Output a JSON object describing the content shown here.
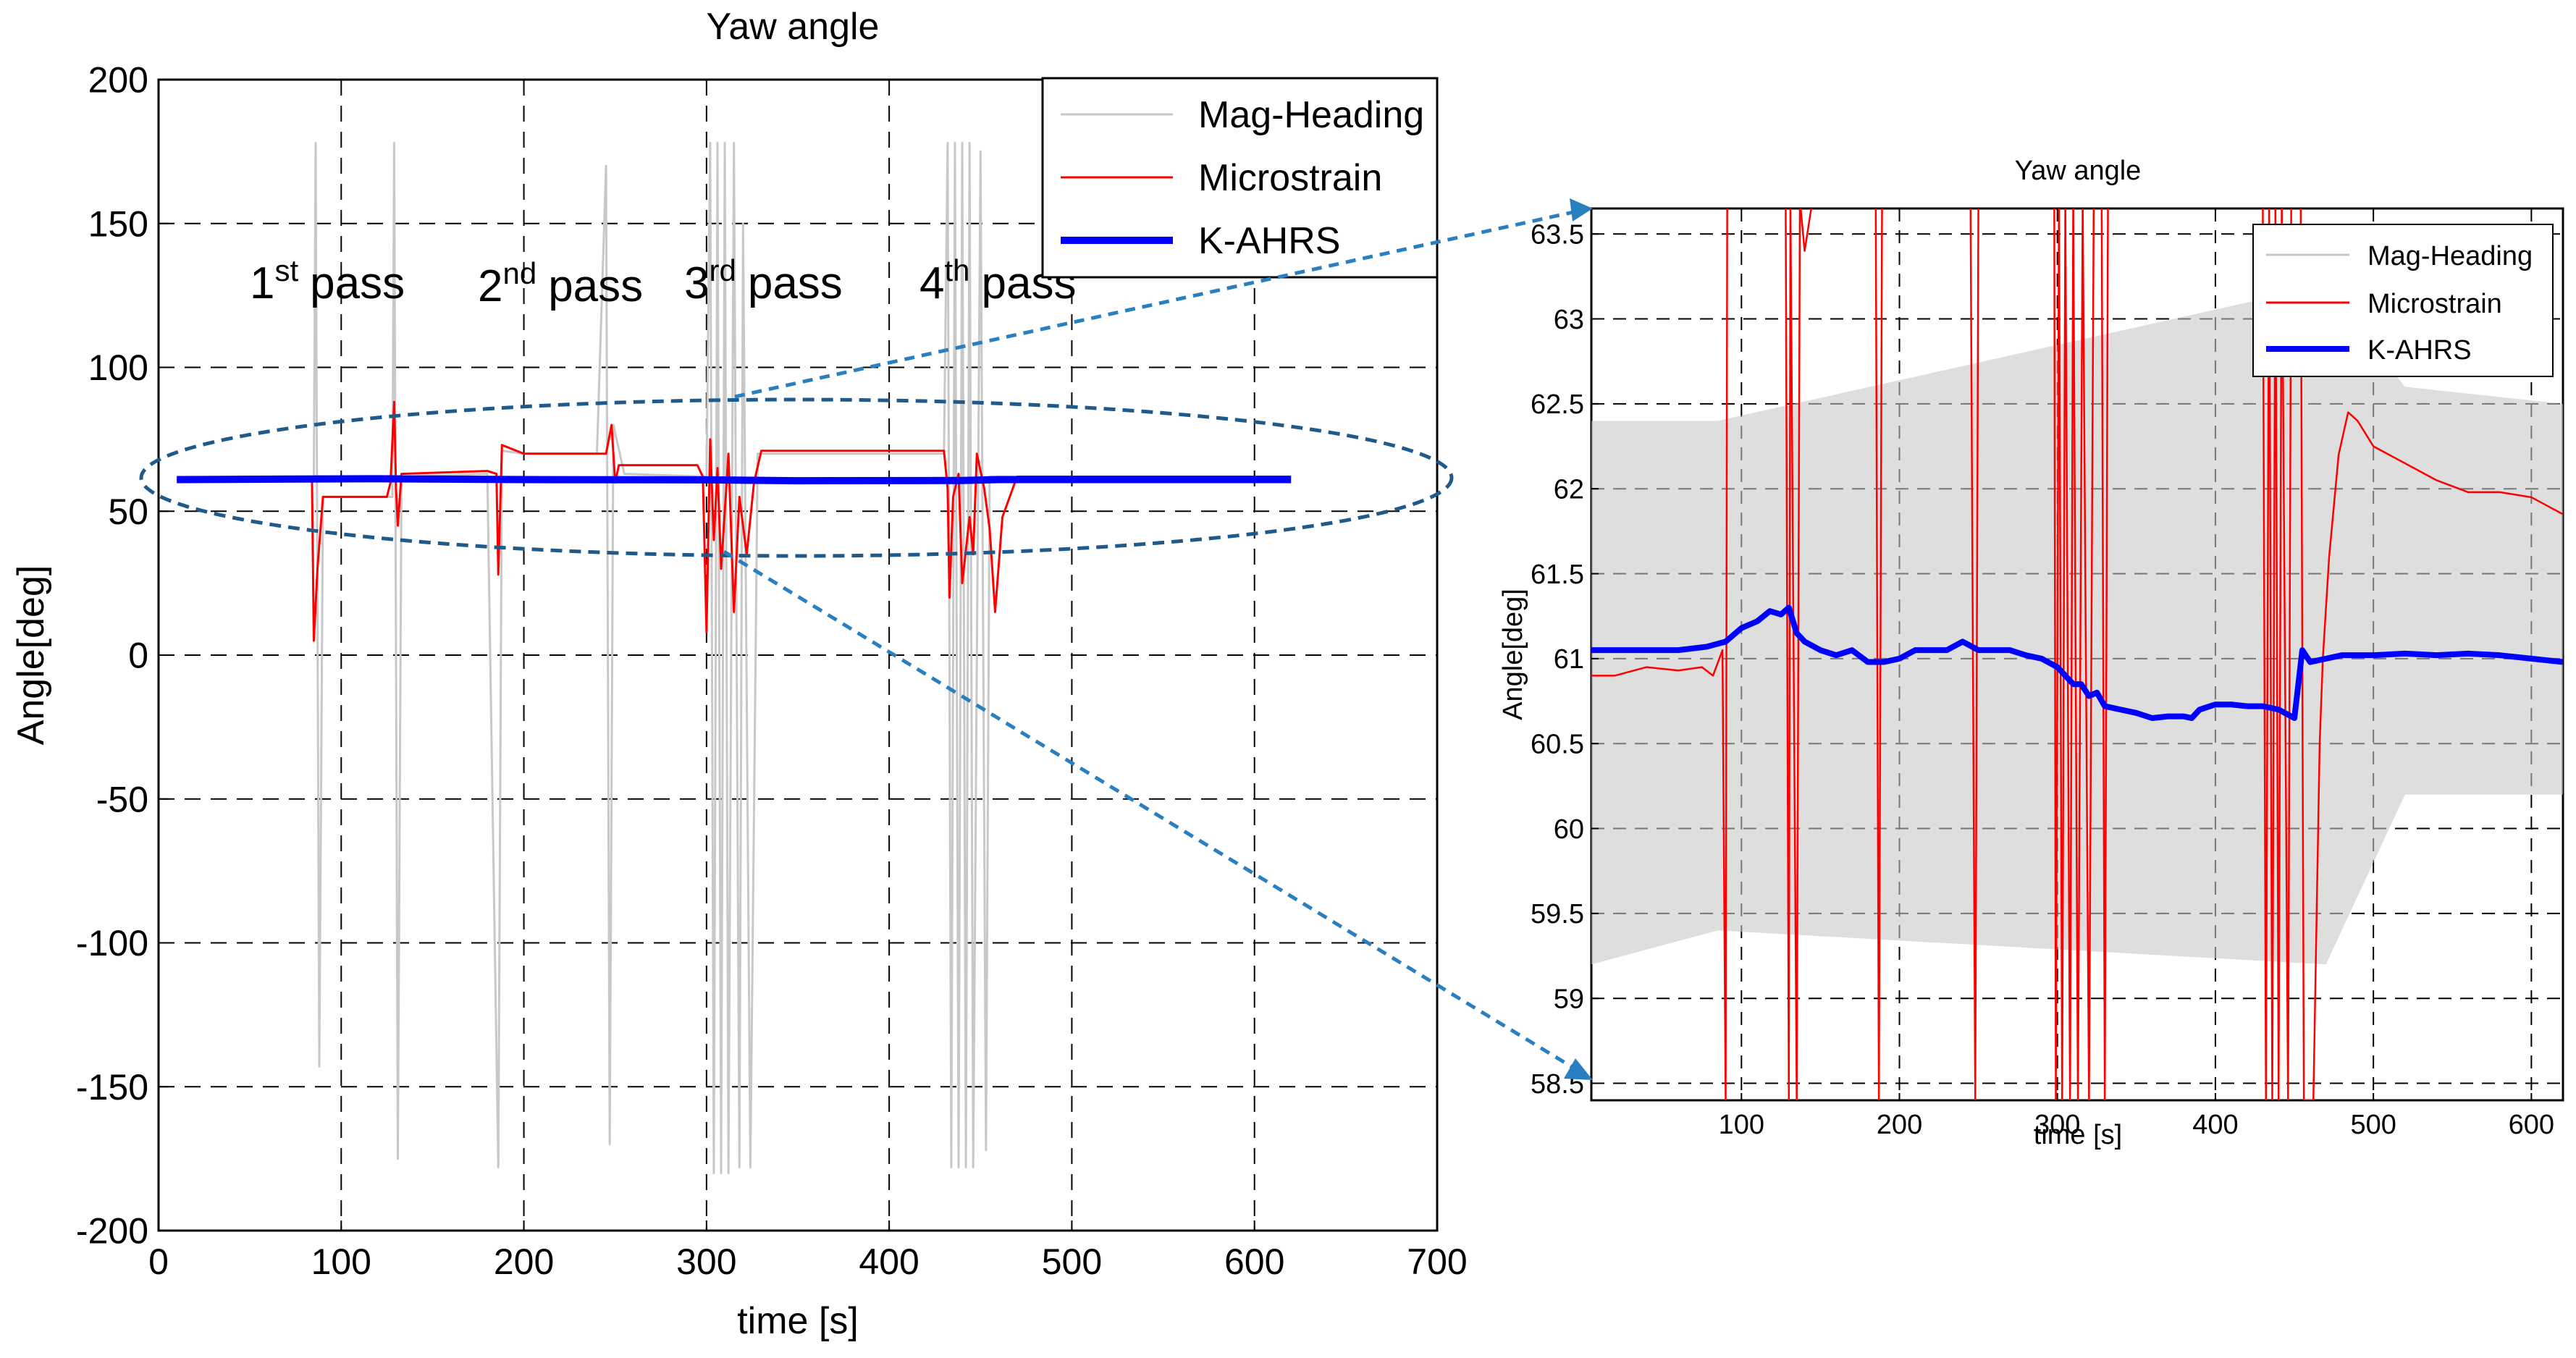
{
  "chart_data": [
    {
      "type": "line",
      "title": "Yaw angle",
      "xlabel": "time [s]",
      "ylabel": "Angle[deg]",
      "xlim": [
        0,
        700
      ],
      "ylim": [
        -200,
        200
      ],
      "xticks": [
        0,
        100,
        200,
        300,
        400,
        500,
        600,
        700
      ],
      "yticks": [
        -200,
        -150,
        -100,
        -50,
        0,
        50,
        100,
        150,
        200
      ],
      "grid": true,
      "legend_position": "top-right",
      "pass_labels": [
        {
          "base": "1",
          "sup": "st",
          "word": "pass"
        },
        {
          "base": "2",
          "sup": "nd",
          "word": "pass"
        },
        {
          "base": "3",
          "sup": "rd",
          "word": "pass"
        },
        {
          "base": "4",
          "sup": "th",
          "word": "pass"
        }
      ],
      "series": [
        {
          "name": "Mag-Heading",
          "color": "#c8c8c8",
          "points": [
            [
              10,
              61
            ],
            [
              85,
              61
            ],
            [
              86,
              178
            ],
            [
              88,
              -143
            ],
            [
              90,
              55
            ],
            [
              95,
              55
            ],
            [
              128,
              55
            ],
            [
              129,
              178
            ],
            [
              131,
              -175
            ],
            [
              133,
              62
            ],
            [
              180,
              63
            ],
            [
              186,
              -178
            ],
            [
              188,
              71
            ],
            [
              200,
              70
            ],
            [
              240,
              70
            ],
            [
              245,
              170
            ],
            [
              247,
              -170
            ],
            [
              249,
              80
            ],
            [
              255,
              63
            ],
            [
              300,
              62
            ],
            [
              302,
              178
            ],
            [
              304,
              -180
            ],
            [
              306,
              178
            ],
            [
              308,
              -180
            ],
            [
              310,
              178
            ],
            [
              312,
              -180
            ],
            [
              315,
              178
            ],
            [
              318,
              -178
            ],
            [
              320,
              150
            ],
            [
              324,
              -178
            ],
            [
              328,
              70
            ],
            [
              370,
              70
            ],
            [
              430,
              70
            ],
            [
              432,
              178
            ],
            [
              434,
              -178
            ],
            [
              436,
              178
            ],
            [
              438,
              -178
            ],
            [
              440,
              178
            ],
            [
              442,
              -178
            ],
            [
              444,
              178
            ],
            [
              446,
              -178
            ],
            [
              450,
              175
            ],
            [
              453,
              -172
            ],
            [
              455,
              62
            ],
            [
              600,
              61
            ],
            [
              620,
              61
            ]
          ]
        },
        {
          "name": "Microstrain",
          "color": "#ff0000",
          "points": [
            [
              10,
              61
            ],
            [
              84,
              61
            ],
            [
              85,
              5
            ],
            [
              87,
              30
            ],
            [
              90,
              55
            ],
            [
              125,
              55
            ],
            [
              127,
              60
            ],
            [
              129,
              88
            ],
            [
              130,
              58
            ],
            [
              131,
              45
            ],
            [
              133,
              63
            ],
            [
              180,
              64
            ],
            [
              185,
              63
            ],
            [
              186,
              28
            ],
            [
              188,
              73
            ],
            [
              200,
              70
            ],
            [
              245,
              70
            ],
            [
              248,
              80
            ],
            [
              250,
              60
            ],
            [
              252,
              66
            ],
            [
              295,
              66
            ],
            [
              298,
              62
            ],
            [
              300,
              8
            ],
            [
              302,
              75
            ],
            [
              304,
              40
            ],
            [
              306,
              65
            ],
            [
              308,
              30
            ],
            [
              312,
              70
            ],
            [
              315,
              15
            ],
            [
              318,
              55
            ],
            [
              322,
              35
            ],
            [
              326,
              60
            ],
            [
              330,
              71
            ],
            [
              430,
              71
            ],
            [
              432,
              58
            ],
            [
              433,
              20
            ],
            [
              435,
              55
            ],
            [
              438,
              63
            ],
            [
              440,
              25
            ],
            [
              444,
              48
            ],
            [
              446,
              35
            ],
            [
              448,
              70
            ],
            [
              452,
              58
            ],
            [
              455,
              44
            ],
            [
              458,
              15
            ],
            [
              462,
              48
            ],
            [
              470,
              62
            ],
            [
              500,
              62
            ],
            [
              620,
              62
            ]
          ]
        },
        {
          "name": "K-AHRS",
          "color": "#0000ff",
          "points": [
            [
              10,
              61
            ],
            [
              120,
              61.3
            ],
            [
              200,
              61
            ],
            [
              300,
              60.9
            ],
            [
              350,
              60.6
            ],
            [
              440,
              60.7
            ],
            [
              460,
              61
            ],
            [
              620,
              61
            ]
          ]
        }
      ],
      "zoom_ellipse": "around the series near 50–75 deg, 0–630 s"
    },
    {
      "type": "line",
      "title": "Yaw angle",
      "xlabel": "time [s]",
      "ylabel": "Angle[deg]",
      "xlim": [
        5,
        620
      ],
      "ylim": [
        58.4,
        63.65
      ],
      "xticks": [
        100,
        200,
        300,
        400,
        500,
        600
      ],
      "yticks": [
        58.5,
        59,
        59.5,
        60,
        60.5,
        61,
        61.5,
        62,
        62.5,
        63,
        63.5
      ],
      "grid": true,
      "legend_position": "top-right",
      "series": [
        {
          "name": "Mag-Heading",
          "color": "#c8c8c8",
          "band_low": [
            [
              5,
              59.2
            ],
            [
              85,
              59.4
            ],
            [
              470,
              59.2
            ],
            [
              520,
              60.2
            ],
            [
              620,
              60.2
            ]
          ],
          "band_high": [
            [
              5,
              62.4
            ],
            [
              85,
              62.4
            ],
            [
              470,
              63.2
            ],
            [
              520,
              62.6
            ],
            [
              620,
              62.5
            ]
          ]
        },
        {
          "name": "Microstrain",
          "color": "#ff0000",
          "points": [
            [
              5,
              60.9
            ],
            [
              20,
              60.9
            ],
            [
              40,
              60.95
            ],
            [
              60,
              60.93
            ],
            [
              75,
              60.95
            ],
            [
              82,
              60.9
            ],
            [
              88,
              61.05
            ],
            [
              90,
              58.4
            ],
            [
              91,
              63.7
            ],
            [
              128,
              63.7
            ],
            [
              130,
              58.4
            ],
            [
              131,
              63.7
            ],
            [
              135,
              58.4
            ],
            [
              137,
              63.7
            ],
            [
              140,
              63.4
            ],
            [
              145,
              63.7
            ],
            [
              185,
              63.7
            ],
            [
              187,
              58.4
            ],
            [
              189,
              63.7
            ],
            [
              245,
              63.7
            ],
            [
              248,
              58.4
            ],
            [
              250,
              63.7
            ],
            [
              255,
              63.7
            ],
            [
              298,
              63.7
            ],
            [
              299,
              58.4
            ],
            [
              301,
              63.7
            ],
            [
              303,
              58.4
            ],
            [
              305,
              63.7
            ],
            [
              308,
              58.4
            ],
            [
              310,
              63.7
            ],
            [
              313,
              58.4
            ],
            [
              316,
              63.7
            ],
            [
              320,
              58.4
            ],
            [
              323,
              63.7
            ],
            [
              328,
              63.7
            ],
            [
              330,
              58.4
            ],
            [
              332,
              63.7
            ],
            [
              430,
              63.7
            ],
            [
              432,
              58.4
            ],
            [
              434,
              63.7
            ],
            [
              436,
              58.4
            ],
            [
              438,
              63.7
            ],
            [
              440,
              58.4
            ],
            [
              442,
              63.7
            ],
            [
              446,
              58.4
            ],
            [
              448,
              63.7
            ],
            [
              454,
              63.7
            ],
            [
              456,
              58.4
            ],
            [
              462,
              58.4
            ],
            [
              466,
              60.5
            ],
            [
              468,
              61.0
            ],
            [
              472,
              61.6
            ],
            [
              478,
              62.2
            ],
            [
              484,
              62.45
            ],
            [
              490,
              62.4
            ],
            [
              500,
              62.25
            ],
            [
              520,
              62.15
            ],
            [
              540,
              62.05
            ],
            [
              560,
              61.98
            ],
            [
              580,
              61.98
            ],
            [
              600,
              61.95
            ],
            [
              610,
              61.9
            ],
            [
              620,
              61.85
            ]
          ]
        },
        {
          "name": "K-AHRS",
          "color": "#0000ff",
          "points": [
            [
              5,
              61.05
            ],
            [
              20,
              61.05
            ],
            [
              40,
              61.05
            ],
            [
              60,
              61.05
            ],
            [
              78,
              61.07
            ],
            [
              90,
              61.1
            ],
            [
              100,
              61.18
            ],
            [
              110,
              61.22
            ],
            [
              118,
              61.28
            ],
            [
              125,
              61.26
            ],
            [
              130,
              61.3
            ],
            [
              135,
              61.15
            ],
            [
              140,
              61.1
            ],
            [
              150,
              61.05
            ],
            [
              160,
              61.02
            ],
            [
              170,
              61.05
            ],
            [
              180,
              60.98
            ],
            [
              190,
              60.98
            ],
            [
              200,
              61.0
            ],
            [
              210,
              61.05
            ],
            [
              220,
              61.05
            ],
            [
              230,
              61.05
            ],
            [
              240,
              61.1
            ],
            [
              250,
              61.05
            ],
            [
              260,
              61.05
            ],
            [
              270,
              61.05
            ],
            [
              280,
              61.02
            ],
            [
              290,
              61.0
            ],
            [
              300,
              60.95
            ],
            [
              310,
              60.85
            ],
            [
              315,
              60.85
            ],
            [
              320,
              60.78
            ],
            [
              325,
              60.8
            ],
            [
              330,
              60.72
            ],
            [
              340,
              60.7
            ],
            [
              350,
              60.68
            ],
            [
              360,
              60.65
            ],
            [
              370,
              60.66
            ],
            [
              380,
              60.66
            ],
            [
              385,
              60.65
            ],
            [
              390,
              60.7
            ],
            [
              400,
              60.73
            ],
            [
              410,
              60.73
            ],
            [
              420,
              60.72
            ],
            [
              430,
              60.72
            ],
            [
              440,
              60.7
            ],
            [
              450,
              60.65
            ],
            [
              455,
              61.05
            ],
            [
              460,
              60.98
            ],
            [
              470,
              61.0
            ],
            [
              480,
              61.02
            ],
            [
              500,
              61.02
            ],
            [
              520,
              61.03
            ],
            [
              540,
              61.02
            ],
            [
              560,
              61.03
            ],
            [
              580,
              61.02
            ],
            [
              600,
              61.0
            ],
            [
              620,
              60.98
            ]
          ]
        }
      ]
    }
  ]
}
